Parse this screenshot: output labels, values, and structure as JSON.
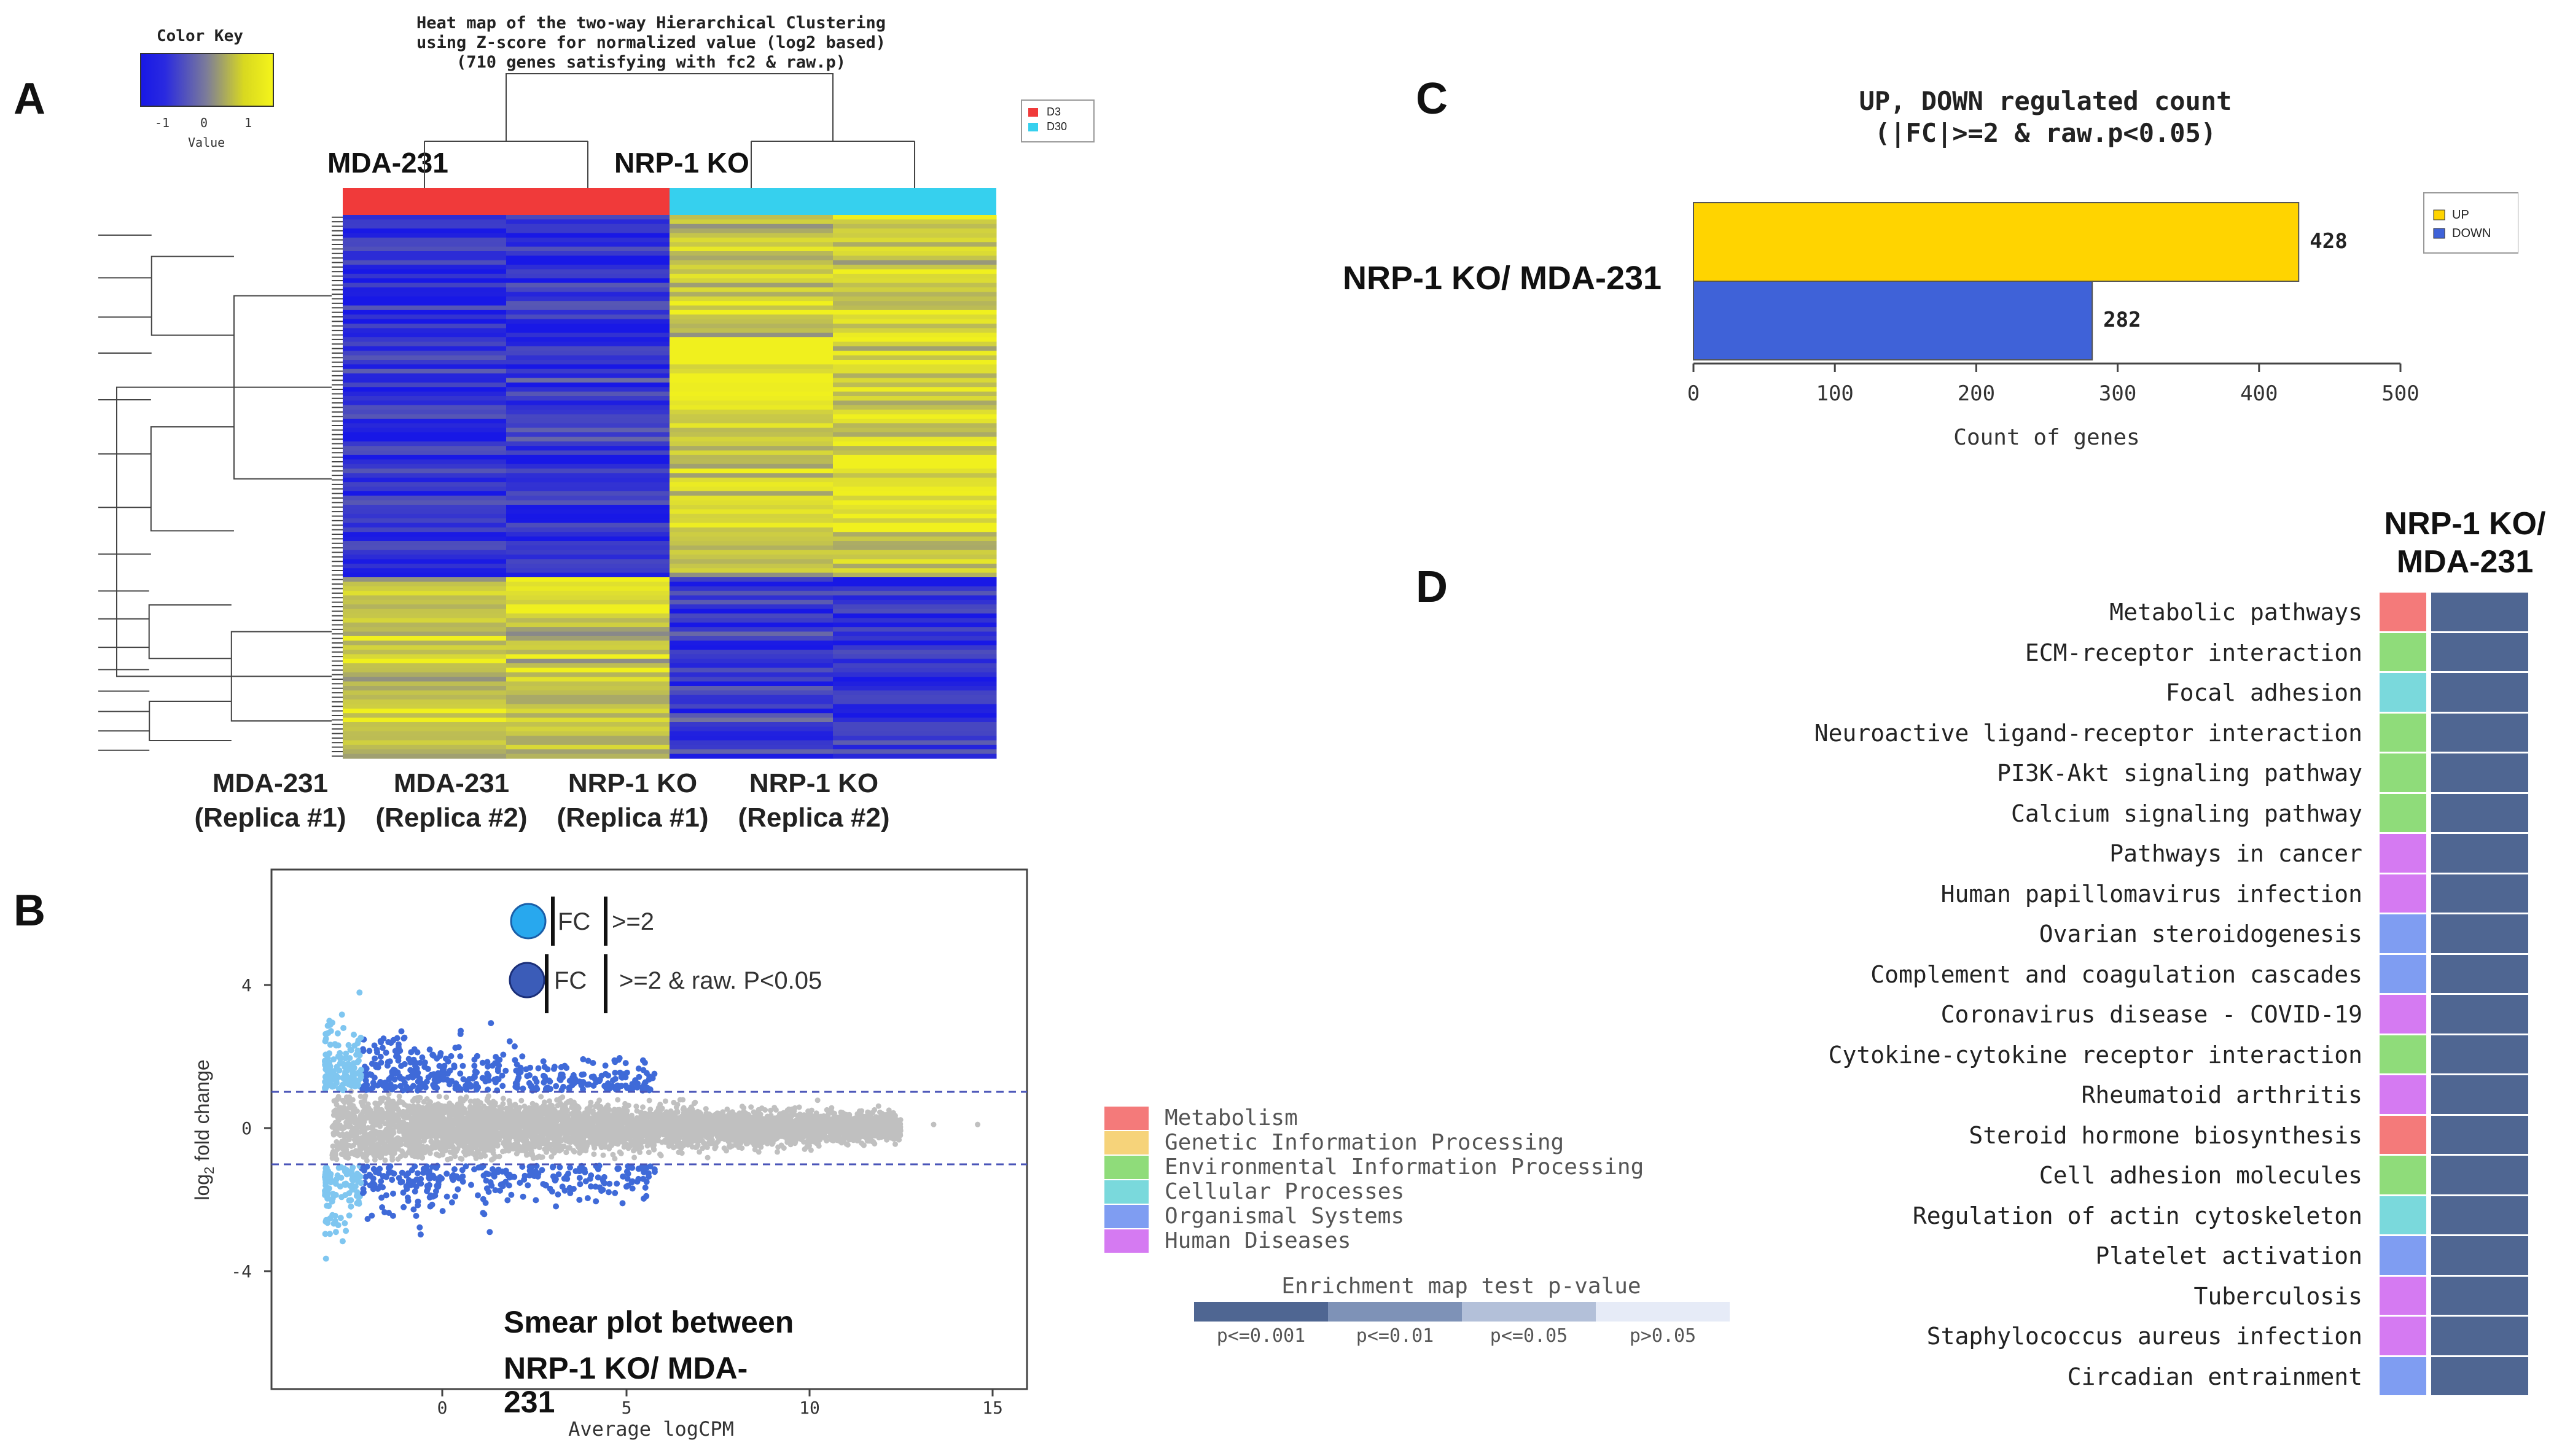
{
  "panel_letters": {
    "a": "A",
    "b": "B",
    "c": "C",
    "d": "D"
  },
  "colors": {
    "blue": "#2020e0",
    "yellow": "#f0f000",
    "mda_bar": "#f03a3a",
    "ko_bar": "#36d0ee",
    "up": "#ffd400",
    "down": "#3f62d8",
    "gray": "#bdbdbd"
  },
  "heatmap": {
    "title_lines": [
      "Heat map of the two-way Hierarchical Clustering",
      "using Z-score for normalized value (log2 based)",
      "(710 genes satisfying with fc2 & raw.p)"
    ],
    "color_key_title": "Color Key",
    "color_key_ticks": [
      "-1",
      "0",
      "1"
    ],
    "color_key_label": "Value",
    "legend": [
      {
        "label": "D3",
        "color": "#f03a3a"
      },
      {
        "label": "D30",
        "color": "#36d0ee"
      }
    ],
    "group_labels": [
      "MDA-231",
      "NRP-1 KO"
    ],
    "sample_labels": [
      {
        "name": "MDA-231",
        "rep": "(Replica #1)"
      },
      {
        "name": "MDA-231",
        "rep": "(Replica #2)"
      },
      {
        "name": "NRP-1 KO",
        "rep": "(Replica #1)"
      },
      {
        "name": "NRP-1 KO",
        "rep": "(Replica #2)"
      }
    ]
  },
  "smear": {
    "legend1": {
      "pre": "FC",
      "post": ">=2"
    },
    "legend2": {
      "pre": "FC",
      "post": ">=2 & raw. P<0.05"
    },
    "ylabel": "log",
    "ylabel_sub": "2",
    "ylabel_rest": " fold change",
    "xlabel": "Average logCPM",
    "y_ticks": [
      "4",
      "0",
      "-4"
    ],
    "x_ticks": [
      "0",
      "5",
      "10",
      "15"
    ],
    "title_lines": [
      "Smear plot between",
      "NRP-1 KO/ MDA-",
      "231"
    ]
  },
  "chart_data": [
    {
      "type": "bar",
      "title": "UP, DOWN regulated count",
      "subtitle": "(|FC|>=2 & raw.p<0.05)",
      "category_label": "NRP-1 KO/ MDA-231",
      "series": [
        {
          "name": "UP",
          "values": [
            428
          ]
        },
        {
          "name": "DOWN",
          "values": [
            282
          ]
        }
      ],
      "value_labels": [
        "428",
        "282"
      ],
      "legend": [
        "UP",
        "DOWN"
      ],
      "xlabel": "Count of genes",
      "xlim": [
        0,
        500
      ],
      "x_ticks": [
        "0",
        "100",
        "200",
        "300",
        "400",
        "500"
      ]
    },
    {
      "type": "heatmap",
      "title": "NRP-1 KO/ MDA-231",
      "title_lines": [
        "NRP-1 KO/",
        "MDA-231"
      ],
      "pathways": [
        {
          "name": "Metabolic pathways",
          "category": "Metabolism",
          "p": "p<=0.001"
        },
        {
          "name": "ECM-receptor interaction",
          "category": "Environmental Information Processing",
          "p": "p<=0.001"
        },
        {
          "name": "Focal adhesion",
          "category": "Cellular Processes",
          "p": "p<=0.001"
        },
        {
          "name": "Neuroactive ligand-receptor interaction",
          "category": "Environmental Information Processing",
          "p": "p<=0.001"
        },
        {
          "name": "PI3K-Akt signaling pathway",
          "category": "Environmental Information Processing",
          "p": "p<=0.001"
        },
        {
          "name": "Calcium signaling pathway",
          "category": "Environmental Information Processing",
          "p": "p<=0.001"
        },
        {
          "name": "Pathways in cancer",
          "category": "Human Diseases",
          "p": "p<=0.001"
        },
        {
          "name": "Human papillomavirus infection",
          "category": "Human Diseases",
          "p": "p<=0.001"
        },
        {
          "name": "Ovarian steroidogenesis",
          "category": "Organismal Systems",
          "p": "p<=0.001"
        },
        {
          "name": "Complement and coagulation cascades",
          "category": "Organismal Systems",
          "p": "p<=0.001"
        },
        {
          "name": "Coronavirus disease - COVID-19",
          "category": "Human Diseases",
          "p": "p<=0.001"
        },
        {
          "name": "Cytokine-cytokine receptor interaction",
          "category": "Environmental Information Processing",
          "p": "p<=0.001"
        },
        {
          "name": "Rheumatoid arthritis",
          "category": "Human Diseases",
          "p": "p<=0.001"
        },
        {
          "name": "Steroid hormone biosynthesis",
          "category": "Metabolism",
          "p": "p<=0.001"
        },
        {
          "name": "Cell adhesion molecules",
          "category": "Environmental Information Processing",
          "p": "p<=0.001"
        },
        {
          "name": "Regulation of actin cytoskeleton",
          "category": "Cellular Processes",
          "p": "p<=0.001"
        },
        {
          "name": "Platelet activation",
          "category": "Organismal Systems",
          "p": "p<=0.001"
        },
        {
          "name": "Tuberculosis",
          "category": "Human Diseases",
          "p": "p<=0.001"
        },
        {
          "name": "Staphylococcus aureus infection",
          "category": "Human Diseases",
          "p": "p<=0.001"
        },
        {
          "name": "Circadian entrainment",
          "category": "Organismal Systems",
          "p": "p<=0.001"
        }
      ],
      "category_legend": [
        {
          "name": "Metabolism",
          "color": "#f47a7a"
        },
        {
          "name": "Genetic Information Processing",
          "color": "#f6d37a"
        },
        {
          "name": "Environmental Information Processing",
          "color": "#8fdc7a"
        },
        {
          "name": "Cellular Processes",
          "color": "#7ad9dc"
        },
        {
          "name": "Organismal Systems",
          "color": "#7f9df2"
        },
        {
          "name": "Human Diseases",
          "color": "#d57af2"
        }
      ],
      "pvalue_legend_title": "Enrichment map test p-value",
      "pvalue_legend": [
        {
          "label": "p<=0.001",
          "color": "#4f6692"
        },
        {
          "label": "p<=0.01",
          "color": "#7e92b7"
        },
        {
          "label": "p<=0.05",
          "color": "#b3c0d9"
        },
        {
          "label": "p>0.05",
          "color": "#e6ebf7"
        }
      ]
    }
  ]
}
